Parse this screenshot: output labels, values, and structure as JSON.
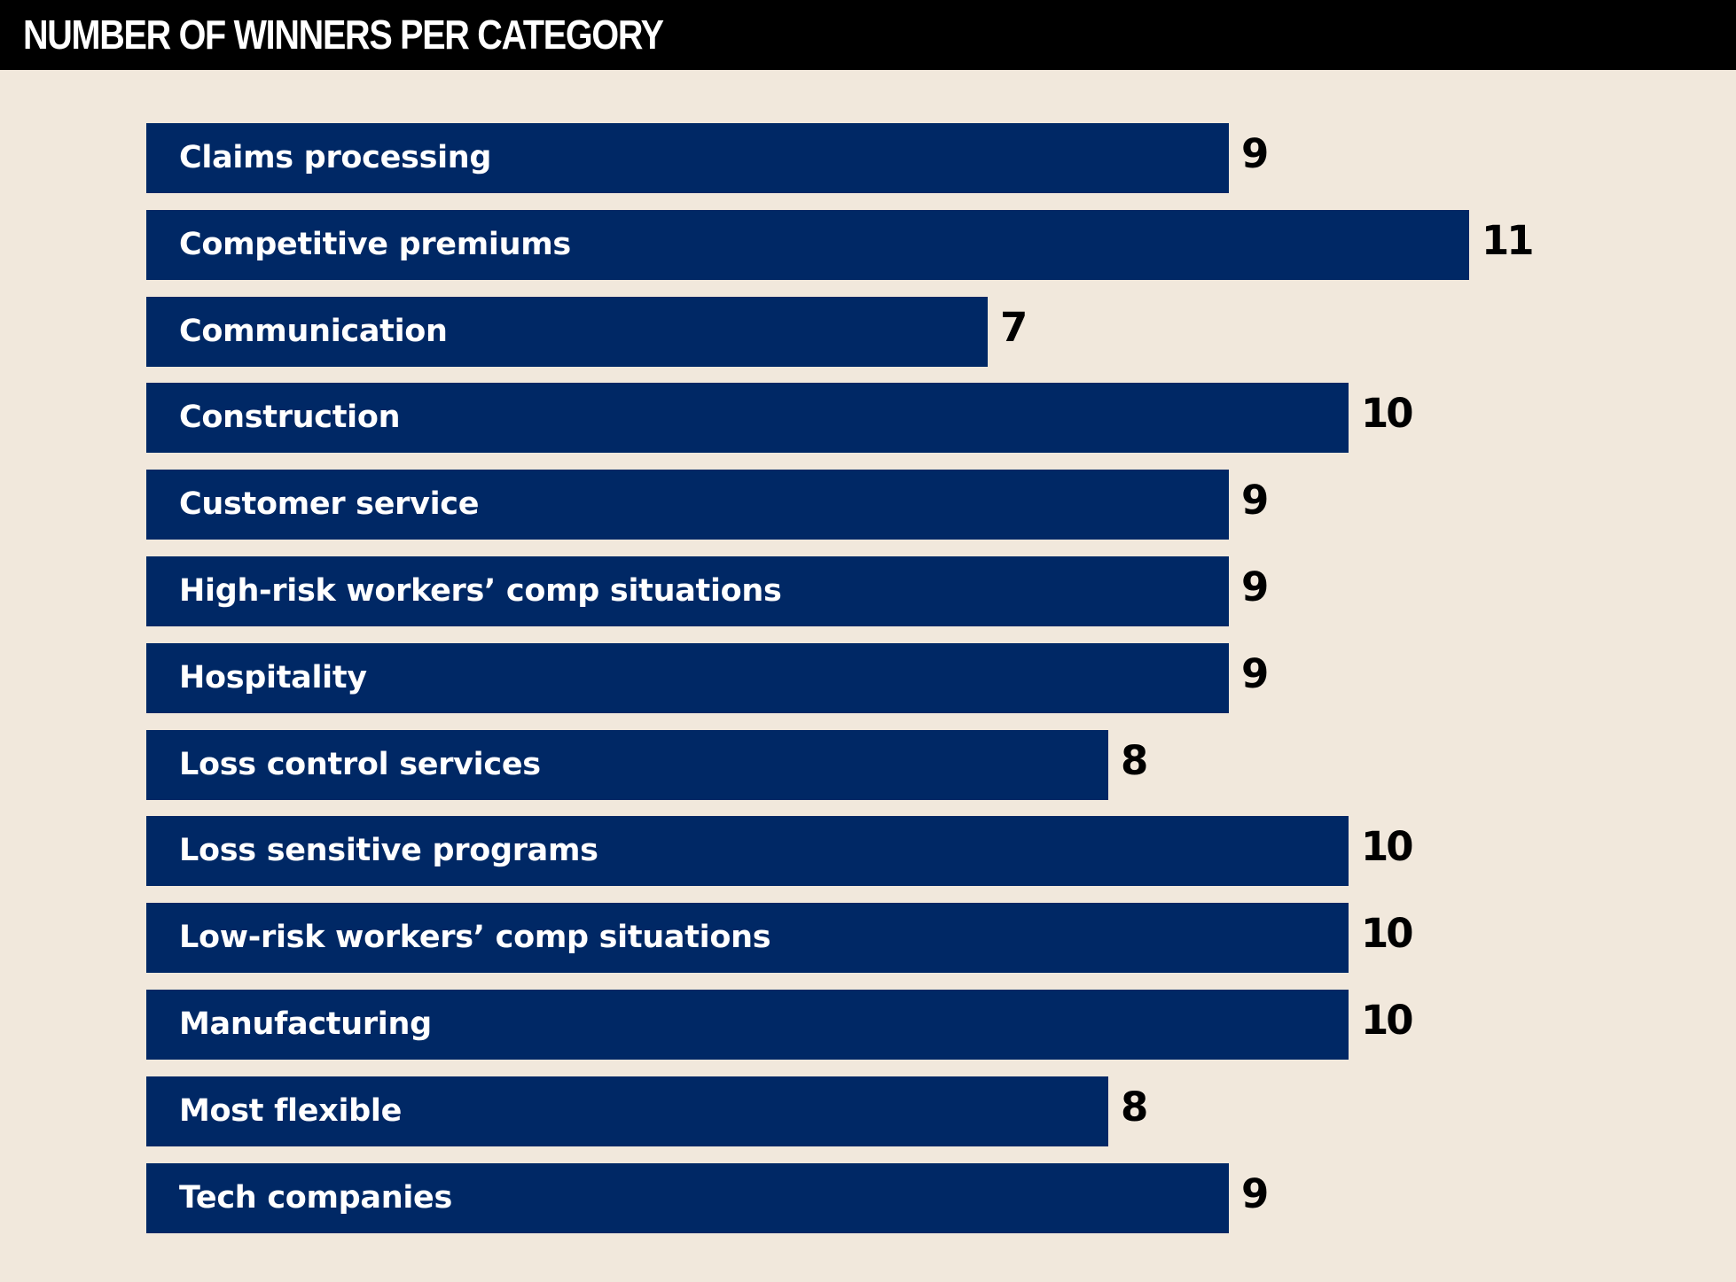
{
  "colors": {
    "background": "#f1e8dc",
    "title_bar": "#000000",
    "title_text": "#ffffff",
    "bar": "#002865",
    "bar_label": "#ffffff",
    "value_label": "#000000"
  },
  "chart_data": {
    "type": "bar",
    "orientation": "horizontal",
    "title": "NUMBER OF WINNERS PER CATEGORY",
    "categories": [
      "Claims processing",
      "Competitive premiums",
      "Communication",
      "Construction",
      "Customer service",
      "High-risk workers’ comp situations",
      "Hospitality",
      "Loss control services",
      "Loss sensitive programs",
      "Low-risk workers’ comp situations",
      "Manufacturing",
      "Most flexible",
      "Tech companies"
    ],
    "values": [
      9,
      11,
      7,
      10,
      9,
      9,
      9,
      8,
      10,
      10,
      10,
      8,
      9
    ],
    "xlim": [
      0,
      11
    ],
    "grid": false,
    "legend": "none",
    "category_labels": "inside-bar",
    "value_labels": "outside-bar-end"
  }
}
